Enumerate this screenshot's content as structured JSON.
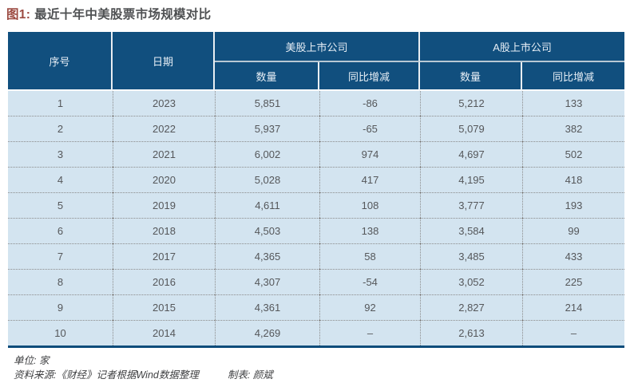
{
  "title": {
    "prefix": "图1:",
    "text": "最近十年中美股票市场规模对比"
  },
  "table": {
    "header": {
      "serial": "序号",
      "date": "日期",
      "group_us": "美股上市公司",
      "group_a": "A股上市公司",
      "count": "数量",
      "yoy": "同比增减"
    },
    "rows": [
      [
        "1",
        "2023",
        "5,851",
        "-86",
        "5,212",
        "133"
      ],
      [
        "2",
        "2022",
        "5,937",
        "-65",
        "5,079",
        "382"
      ],
      [
        "3",
        "2021",
        "6,002",
        "974",
        "4,697",
        "502"
      ],
      [
        "4",
        "2020",
        "5,028",
        "417",
        "4,195",
        "418"
      ],
      [
        "5",
        "2019",
        "4,611",
        "108",
        "3,777",
        "193"
      ],
      [
        "6",
        "2018",
        "4,503",
        "138",
        "3,584",
        "99"
      ],
      [
        "7",
        "2017",
        "4,365",
        "58",
        "3,485",
        "433"
      ],
      [
        "8",
        "2016",
        "4,307",
        "-54",
        "3,052",
        "225"
      ],
      [
        "9",
        "2015",
        "4,361",
        "92",
        "2,827",
        "214"
      ],
      [
        "10",
        "2014",
        "4,269",
        "–",
        "2,613",
        "–"
      ]
    ]
  },
  "footer": {
    "unit": "单位: 家",
    "source": "资料来源:《财经》记者根据Wind数据整理",
    "credit": "制表: 颜斌"
  },
  "colors": {
    "header_bg": "#114F7E",
    "row_bg": "#D3E4F0",
    "bottom_rule": "#0E4C7B",
    "title_prefix": "#9C4B42",
    "title_text": "#4E5052",
    "body_text": "#55575A"
  },
  "chart_data": {
    "type": "table",
    "title": "最近十年中美股票市场规模对比",
    "unit": "家",
    "columns": [
      "序号",
      "日期",
      "美股上市公司 数量",
      "美股上市公司 同比增减",
      "A股上市公司 数量",
      "A股上市公司 同比增减"
    ],
    "rows": [
      [
        1,
        2023,
        5851,
        -86,
        5212,
        133
      ],
      [
        2,
        2022,
        5937,
        -65,
        5079,
        382
      ],
      [
        3,
        2021,
        6002,
        974,
        4697,
        502
      ],
      [
        4,
        2020,
        5028,
        417,
        4195,
        418
      ],
      [
        5,
        2019,
        4611,
        108,
        3777,
        193
      ],
      [
        6,
        2018,
        4503,
        138,
        3584,
        99
      ],
      [
        7,
        2017,
        4365,
        58,
        3485,
        433
      ],
      [
        8,
        2016,
        4307,
        -54,
        3052,
        225
      ],
      [
        9,
        2015,
        4361,
        92,
        2827,
        214
      ],
      [
        10,
        2014,
        4269,
        null,
        2613,
        null
      ]
    ]
  }
}
